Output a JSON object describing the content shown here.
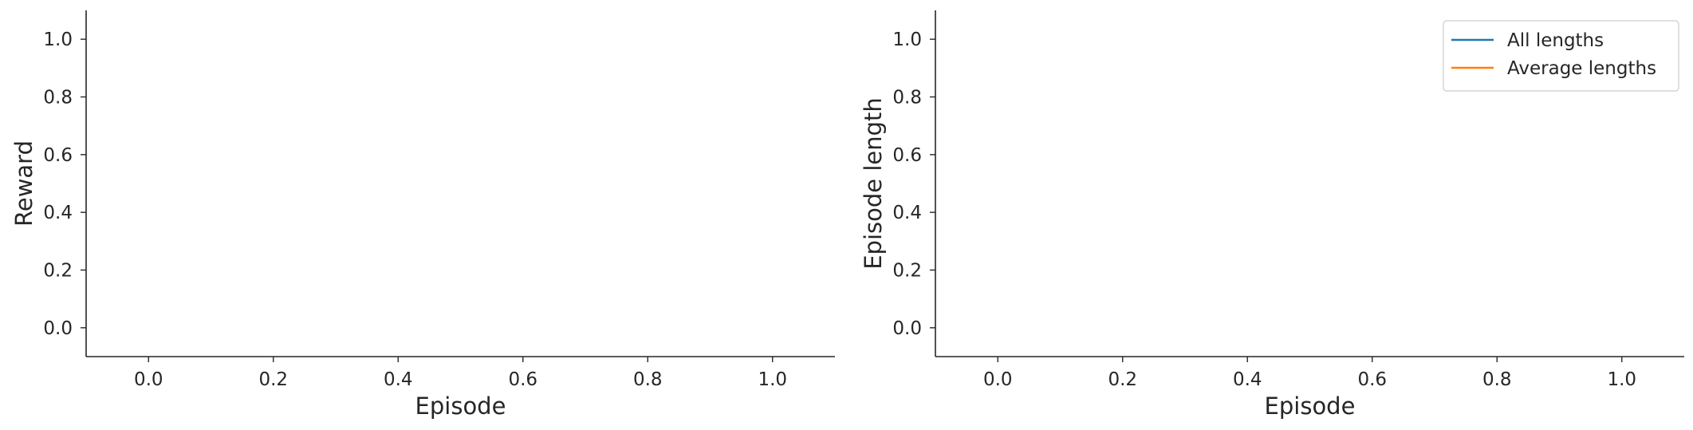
{
  "chart_data": [
    {
      "type": "line",
      "xlabel": "Episode",
      "ylabel": "Reward",
      "xlim": [
        -0.1,
        1.1
      ],
      "ylim": [
        -0.1,
        1.1
      ],
      "xticks": [
        0.0,
        0.2,
        0.4,
        0.6,
        0.8,
        1.0
      ],
      "yticks": [
        0.0,
        0.2,
        0.4,
        0.6,
        0.8,
        1.0
      ],
      "xtick_labels": [
        "0.0",
        "0.2",
        "0.4",
        "0.6",
        "0.8",
        "1.0"
      ],
      "ytick_labels": [
        "0.0",
        "0.2",
        "0.4",
        "0.6",
        "0.8",
        "1.0"
      ],
      "grid": false,
      "series": []
    },
    {
      "type": "line",
      "xlabel": "Episode",
      "ylabel": "Episode length",
      "xlim": [
        -0.1,
        1.1
      ],
      "ylim": [
        -0.1,
        1.1
      ],
      "xticks": [
        0.0,
        0.2,
        0.4,
        0.6,
        0.8,
        1.0
      ],
      "yticks": [
        0.0,
        0.2,
        0.4,
        0.6,
        0.8,
        1.0
      ],
      "xtick_labels": [
        "0.0",
        "0.2",
        "0.4",
        "0.6",
        "0.8",
        "1.0"
      ],
      "ytick_labels": [
        "0.0",
        "0.2",
        "0.4",
        "0.6",
        "0.8",
        "1.0"
      ],
      "grid": false,
      "legend_position": "top-right",
      "series": [
        {
          "name": "All lengths",
          "color": "#1f77b4",
          "x": [],
          "y": []
        },
        {
          "name": "Average lengths",
          "color": "#ff7f0e",
          "x": [],
          "y": []
        }
      ]
    }
  ]
}
